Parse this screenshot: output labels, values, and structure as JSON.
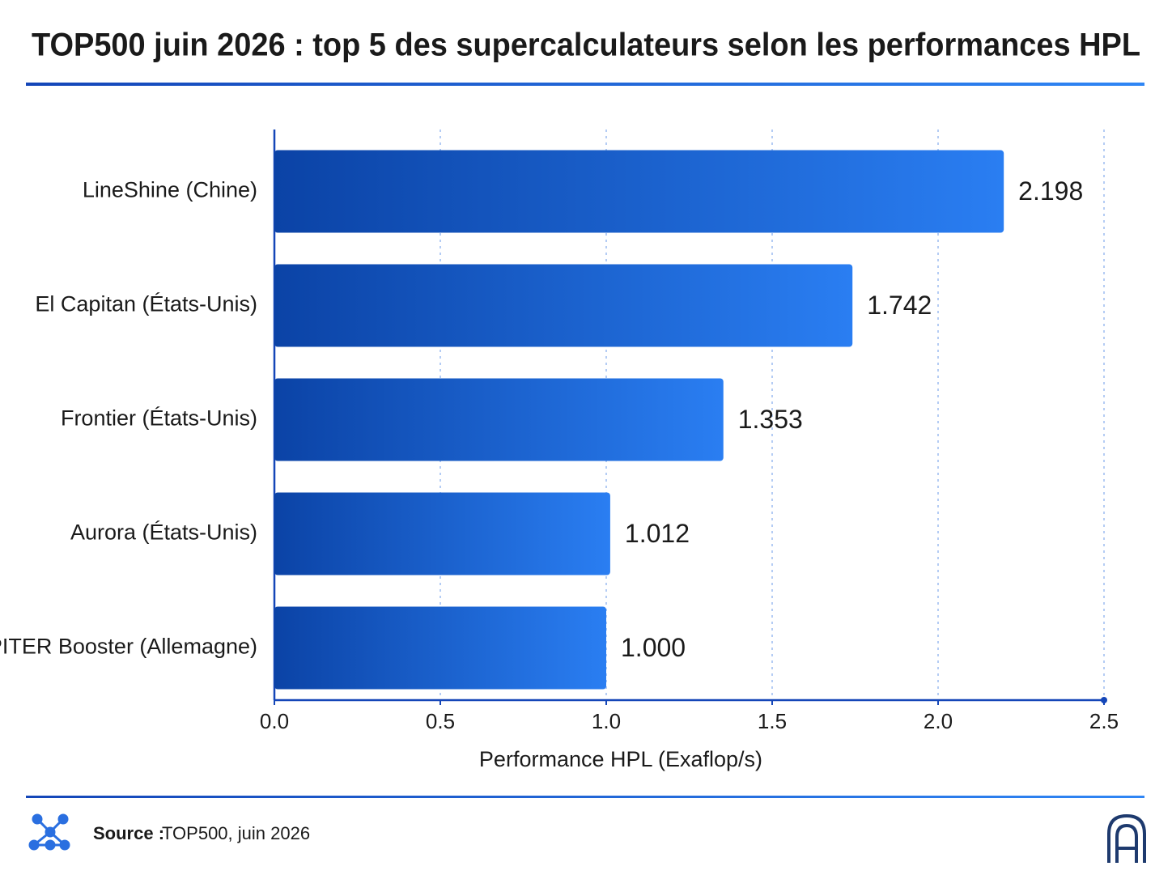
{
  "chart_data": {
    "type": "bar",
    "orientation": "horizontal",
    "title": "TOP500 juin 2026 : top 5 des supercalculateurs selon les performances HPL",
    "categories": [
      "LineShine (Chine)",
      "El Capitan (États-Unis)",
      "Frontier (États-Unis)",
      "Aurora (États-Unis)",
      "JUPITER Booster (Allemagne)"
    ],
    "values": [
      2.198,
      1.742,
      1.353,
      1.012,
      1.0
    ],
    "value_labels": [
      "2.198",
      "1.742",
      "1.353",
      "1.012",
      "1.000"
    ],
    "color": "#1f66dc",
    "xlabel": "Performance HPL (Exaflop/s)",
    "xlim": [
      0,
      2.5
    ],
    "xticks": [
      {
        "value": 0,
        "label": "0.0"
      },
      0.5,
      {
        "value": 1,
        "label": "1.0"
      },
      1.5,
      {
        "value": 2,
        "label": "2.0"
      },
      2.5
    ],
    "grid": true
  },
  "footer": {
    "source_label": "Source :",
    "source_text": "TOP500, juin 2026"
  }
}
